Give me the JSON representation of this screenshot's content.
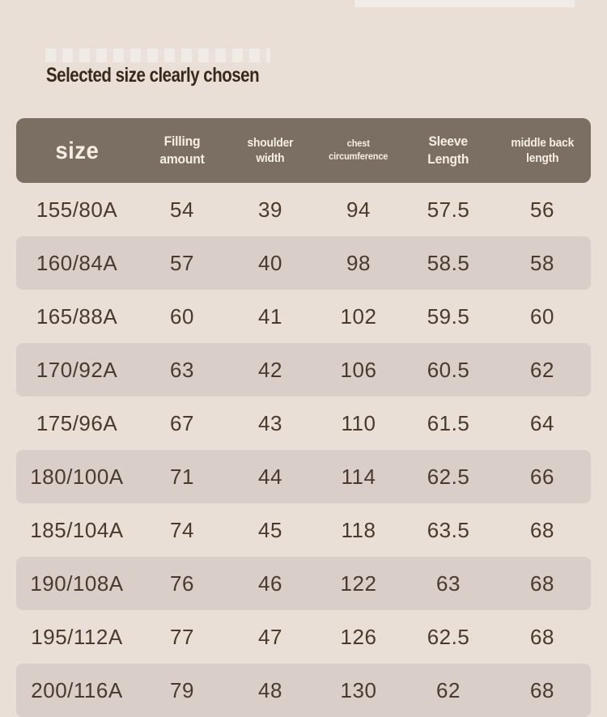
{
  "page": {
    "background_color": "#e9dfd7",
    "header_bg_color": "#7b6f64",
    "header_text_color": "#f6eee1",
    "shaded_row_color": "#d9cfc8",
    "body_text_color": "#483a2c",
    "heading_text_color": "#38291b"
  },
  "table": {
    "header": {
      "size": "size",
      "filling": "Filling amount",
      "shoulder": "shoulder\nwidth",
      "chest": "chest\ncircumference",
      "sleeve": "Sleeve\nLength",
      "back": "middle back\nlength"
    }
  },
  "chart_data": {
    "type": "table",
    "title": "Selected size clearly chosen",
    "columns": [
      "size",
      "Filling amount",
      "shoulder width",
      "chest circumference",
      "Sleeve Length",
      "middle back length"
    ],
    "rows": [
      [
        "155/80A",
        "54",
        "39",
        "94",
        "57.5",
        "56"
      ],
      [
        "160/84A",
        "57",
        "40",
        "98",
        "58.5",
        "58"
      ],
      [
        "165/88A",
        "60",
        "41",
        "102",
        "59.5",
        "60"
      ],
      [
        "170/92A",
        "63",
        "42",
        "106",
        "60.5",
        "62"
      ],
      [
        "175/96A",
        "67",
        "43",
        "110",
        "61.5",
        "64"
      ],
      [
        "180/100A",
        "71",
        "44",
        "114",
        "62.5",
        "66"
      ],
      [
        "185/104A",
        "74",
        "45",
        "118",
        "63.5",
        "68"
      ],
      [
        "190/108A",
        "76",
        "46",
        "122",
        "63",
        "68"
      ],
      [
        "195/112A",
        "77",
        "47",
        "126",
        "62.5",
        "68"
      ],
      [
        "200/116A",
        "79",
        "48",
        "130",
        "62",
        "68"
      ]
    ]
  }
}
